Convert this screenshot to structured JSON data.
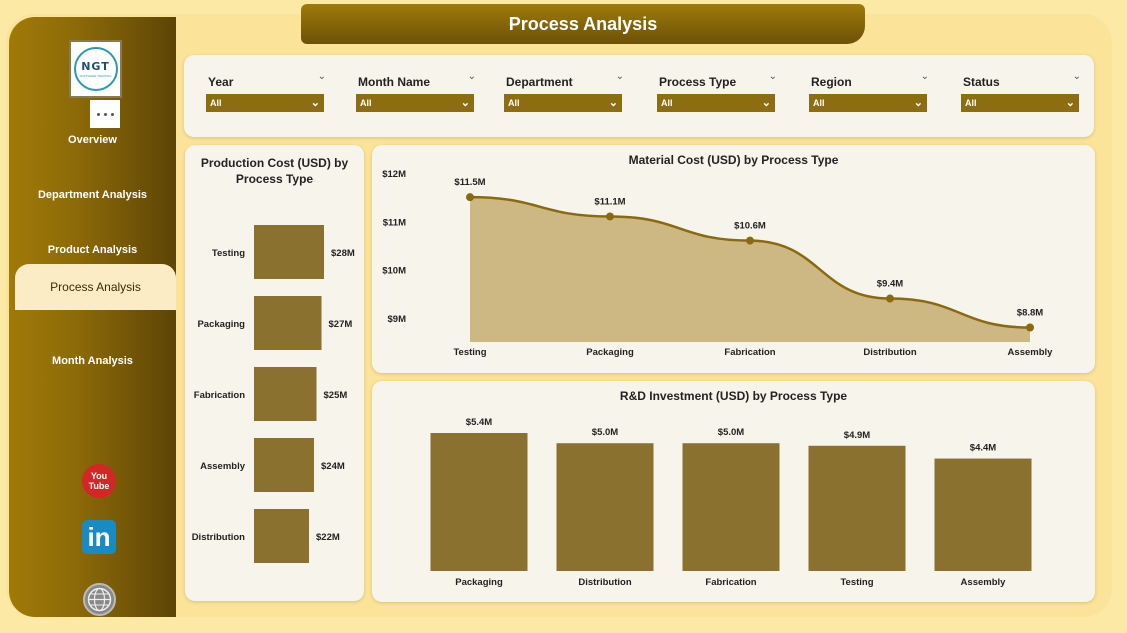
{
  "header": {
    "title": "Process Analysis"
  },
  "sidebar": {
    "logo_text": "NGT",
    "logo_subtext": "SOFTWARE TRAINING",
    "items": [
      {
        "label": "Overview"
      },
      {
        "label": "Department Analysis"
      },
      {
        "label": "Product Analysis"
      },
      {
        "label": "Process Analysis",
        "active": true
      },
      {
        "label": "Month Analysis"
      }
    ],
    "social": {
      "youtube_label": "You Tube",
      "linkedin_label": "in"
    },
    "icons": [
      "more-options-icon",
      "youtube-icon",
      "linkedin-icon",
      "website-icon"
    ]
  },
  "filters": [
    {
      "label": "Year",
      "value": "All"
    },
    {
      "label": "Month Name",
      "value": "All"
    },
    {
      "label": "Department",
      "value": "All"
    },
    {
      "label": "Process Type",
      "value": "All"
    },
    {
      "label": "Region",
      "value": "All"
    },
    {
      "label": "Status",
      "value": "All"
    }
  ],
  "colors": {
    "accent": "#8c6d12",
    "bar": "#8b7130",
    "area": "#cdb783",
    "line": "#8a6a10",
    "background": "#fde9a6"
  },
  "chart_data": [
    {
      "type": "bar",
      "orientation": "horizontal",
      "title": "Production Cost (USD) by Process Type",
      "categories": [
        "Testing",
        "Packaging",
        "Fabrication",
        "Assembly",
        "Distribution"
      ],
      "values": [
        28,
        27,
        25,
        24,
        22
      ],
      "labels": [
        "$28M",
        "$27M",
        "$25M",
        "$24M",
        "$22M"
      ],
      "unit": "M USD"
    },
    {
      "type": "area",
      "title": "Material Cost (USD) by Process Type",
      "categories": [
        "Testing",
        "Packaging",
        "Fabrication",
        "Distribution",
        "Assembly"
      ],
      "values": [
        11.5,
        11.1,
        10.6,
        9.4,
        8.8
      ],
      "labels": [
        "$11.5M",
        "$11.1M",
        "$10.6M",
        "$9.4M",
        "$8.8M"
      ],
      "yticks": [
        "$12M",
        "$11M",
        "$10M",
        "$9M"
      ],
      "ytick_values": [
        12,
        11,
        10,
        9
      ],
      "ylim": [
        8.5,
        12
      ],
      "grid": false
    },
    {
      "type": "bar",
      "orientation": "vertical",
      "title": "R&D Investment (USD) by Process Type",
      "categories": [
        "Packaging",
        "Distribution",
        "Fabrication",
        "Testing",
        "Assembly"
      ],
      "values": [
        5.4,
        5.0,
        5.0,
        4.9,
        4.4
      ],
      "labels": [
        "$5.4M",
        "$5.0M",
        "$5.0M",
        "$4.9M",
        "$4.4M"
      ],
      "ylim": [
        0,
        5.4
      ]
    }
  ]
}
